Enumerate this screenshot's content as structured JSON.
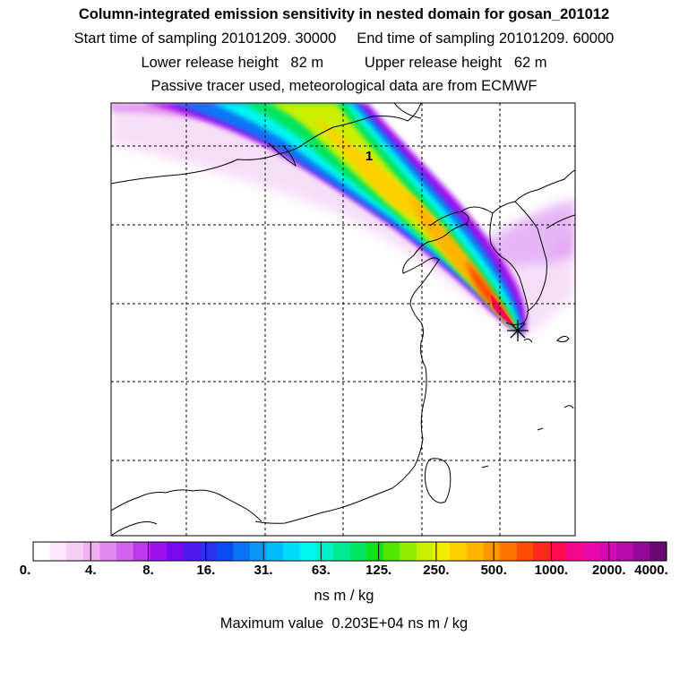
{
  "header": {
    "title": "Column-integrated emission sensitivity in nested domain for gosan_201012",
    "sampling_line": "Start time of sampling 20101209. 30000     End time of sampling 20101209. 60000",
    "release_line": "Lower release height   82 m          Upper release height   62 m",
    "tracer_line": "Passive tracer used, meteorological data are from ECMWF"
  },
  "map": {
    "plume_label": "1",
    "receptor_icon": "star-marker-icon"
  },
  "colorbar": {
    "tick_labels": [
      "0.",
      "4.",
      "8.",
      "16.",
      "31.",
      "63.",
      "125.",
      "250.",
      "500.",
      "1000.",
      "2000.",
      "4000."
    ],
    "colors": [
      "#ffffff",
      "#fbe6fb",
      "#f6cdf6",
      "#f0b0f3",
      "#e189ef",
      "#d264ee",
      "#bb3aee",
      "#a010ee",
      "#7a0aee",
      "#5018ee",
      "#2a30ee",
      "#0a4cf0",
      "#0a74f5",
      "#0a98f8",
      "#00bcfa",
      "#00dcfa",
      "#00f6f2",
      "#00f0c8",
      "#00ea96",
      "#00e45e",
      "#10e21e",
      "#50e800",
      "#92ec00",
      "#caf000",
      "#f2ee00",
      "#fed000",
      "#ffb400",
      "#ff9600",
      "#ff7400",
      "#ff4e00",
      "#ff2a1e",
      "#ff0a52",
      "#f4088e",
      "#e80aaa",
      "#d40ab4",
      "#b80aa8",
      "#960898",
      "#6a0872"
    ],
    "unit": "ns m / kg",
    "max_line": "Maximum value  0.203E+04 ns m / kg"
  }
}
